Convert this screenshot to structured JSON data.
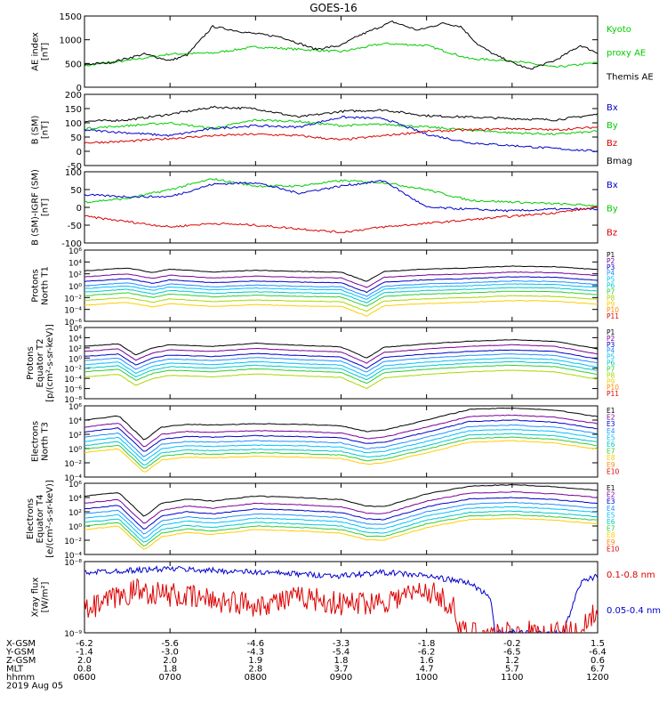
{
  "title": "GOES-16",
  "colors": {
    "black": "#000000",
    "green": "#00cc00",
    "blue": "#0000cc",
    "red": "#dd0000"
  },
  "chart_data": [
    {
      "type": "line",
      "ylabel_lines": [
        "AE index",
        "[nT]"
      ],
      "ylim": [
        0,
        1500
      ],
      "yticks": [
        "0",
        "500",
        "1000",
        "1500"
      ],
      "log": false,
      "legend": [
        {
          "label": "Kyoto",
          "color": "green"
        },
        {
          "label": "proxy AE",
          "color": "green"
        },
        {
          "label": "Themis AE",
          "color": "black"
        }
      ],
      "series": [
        {
          "name": "Kyoto proxy AE",
          "color": "green",
          "x": [
            0,
            0.5,
            1,
            1.5,
            2,
            2.5,
            3,
            3.5,
            4,
            4.5,
            5,
            5.5,
            6
          ],
          "y": [
            450,
            560,
            700,
            720,
            850,
            800,
            750,
            920,
            880,
            600,
            560,
            420,
            520
          ]
        },
        {
          "name": "Themis AE",
          "color": "black",
          "x": [
            0,
            0.3,
            0.7,
            1,
            1.2,
            1.5,
            1.9,
            2.3,
            2.7,
            3,
            3.2,
            3.6,
            3.9,
            4.2,
            4.4,
            4.6,
            4.8,
            5,
            5.2,
            5.5,
            5.8,
            6
          ],
          "y": [
            480,
            520,
            700,
            560,
            680,
            1280,
            1150,
            1060,
            800,
            880,
            1080,
            1380,
            1200,
            1350,
            1280,
            900,
            680,
            520,
            380,
            560,
            880,
            720
          ]
        }
      ]
    },
    {
      "type": "line",
      "ylabel_lines": [
        "B (SM)",
        "[nT]"
      ],
      "ylim": [
        -50,
        200
      ],
      "yticks": [
        "-50",
        "0",
        "50",
        "100",
        "150",
        "200"
      ],
      "log": false,
      "legend": [
        {
          "label": "Bx",
          "color": "blue"
        },
        {
          "label": "By",
          "color": "green"
        },
        {
          "label": "Bz",
          "color": "red"
        },
        {
          "label": "Bmag",
          "color": "black"
        }
      ],
      "series": [
        {
          "name": "Bmag",
          "color": "black",
          "x": [
            0,
            0.5,
            1,
            1.5,
            2,
            2.5,
            3,
            3.5,
            4,
            4.5,
            5,
            5.5,
            6
          ],
          "y": [
            105,
            110,
            130,
            155,
            150,
            120,
            140,
            145,
            125,
            120,
            115,
            110,
            130
          ]
        },
        {
          "name": "By",
          "color": "green",
          "x": [
            0,
            0.5,
            1,
            1.5,
            2,
            2.5,
            3,
            3.5,
            4,
            4.5,
            5,
            5.5,
            6
          ],
          "y": [
            80,
            90,
            100,
            80,
            110,
            105,
            90,
            95,
            85,
            75,
            65,
            60,
            70
          ]
        },
        {
          "name": "Bx",
          "color": "blue",
          "x": [
            0,
            0.5,
            1,
            1.5,
            2,
            2.5,
            3,
            3.5,
            4,
            4.5,
            5,
            5.5,
            6
          ],
          "y": [
            75,
            65,
            55,
            80,
            90,
            85,
            120,
            115,
            60,
            30,
            20,
            10,
            0
          ]
        },
        {
          "name": "Bz",
          "color": "red",
          "x": [
            0,
            0.5,
            1,
            1.5,
            2,
            2.5,
            3,
            3.5,
            4,
            4.5,
            5,
            5.5,
            6
          ],
          "y": [
            30,
            35,
            45,
            55,
            60,
            55,
            40,
            55,
            70,
            75,
            80,
            75,
            85
          ]
        }
      ]
    },
    {
      "type": "line",
      "ylabel_lines": [
        "B (SM)-IGRF (SM)",
        "[nT]"
      ],
      "ylim": [
        -100,
        100
      ],
      "yticks": [
        "-100",
        "-50",
        "0",
        "50",
        "100"
      ],
      "log": false,
      "legend": [
        {
          "label": "Bx",
          "color": "blue"
        },
        {
          "label": "By",
          "color": "green"
        },
        {
          "label": "Bz",
          "color": "red"
        }
      ],
      "series": [
        {
          "name": "By",
          "color": "green",
          "x": [
            0,
            0.5,
            1,
            1.5,
            2,
            2.5,
            3,
            3.5,
            4,
            4.5,
            5,
            5.5,
            6
          ],
          "y": [
            15,
            25,
            50,
            80,
            60,
            60,
            75,
            70,
            50,
            20,
            15,
            10,
            5
          ]
        },
        {
          "name": "Bx",
          "color": "blue",
          "x": [
            0,
            0.5,
            1,
            1.5,
            2,
            2.5,
            3,
            3.5,
            4,
            4.5,
            5,
            5.5,
            6
          ],
          "y": [
            35,
            30,
            30,
            65,
            70,
            40,
            60,
            75,
            0,
            -5,
            -10,
            -5,
            -5
          ]
        },
        {
          "name": "Bz",
          "color": "red",
          "x": [
            0,
            0.5,
            1,
            1.5,
            2,
            2.5,
            3,
            3.5,
            4,
            4.5,
            5,
            5.5,
            6
          ],
          "y": [
            -25,
            -40,
            -55,
            -45,
            -50,
            -60,
            -70,
            -55,
            -45,
            -35,
            -25,
            -15,
            0
          ]
        }
      ]
    },
    {
      "type": "line",
      "ylabel_lines": [
        "Protons",
        "North T1"
      ],
      "log": true,
      "ylim_exp": [
        -6,
        6
      ],
      "yticks": [
        "10⁻⁶",
        "10⁻⁴",
        "10⁻²",
        "10⁰",
        "10²",
        "10⁴",
        "10⁶"
      ],
      "legend": [
        {
          "label": "P1",
          "color": "#000000"
        },
        {
          "label": "P2",
          "color": "#7a0099"
        },
        {
          "label": "P3",
          "color": "#0000cc"
        },
        {
          "label": "P4",
          "color": "#1e90ff"
        },
        {
          "label": "P5",
          "color": "#00bfff"
        },
        {
          "label": "P6",
          "color": "#00c8c8"
        },
        {
          "label": "P7",
          "color": "#33cc33"
        },
        {
          "label": "P8",
          "color": "#a8d800"
        },
        {
          "label": "P9",
          "color": "#ffcc00"
        },
        {
          "label": "P10",
          "color": "#ff8800"
        },
        {
          "label": "P11",
          "color": "#dd0000"
        }
      ],
      "profile": {
        "x": [
          0,
          0.5,
          0.8,
          1,
          1.5,
          2,
          2.5,
          3,
          3.3,
          3.5,
          4,
          4.5,
          5,
          5.5,
          6
        ],
        "y": [
          2.5,
          3,
          2.2,
          2.8,
          2.3,
          2.6,
          2.4,
          2.3,
          0.7,
          2.4,
          2.8,
          3,
          3.3,
          3.2,
          2.7
        ]
      },
      "channel_offsets": [
        0,
        -1,
        -1.8,
        -2.5,
        -3,
        -3.6,
        -4.2,
        -5,
        -5.8
      ]
    },
    {
      "type": "line",
      "ylabel_lines": [
        "Protons",
        "Equator T2",
        "[p/(cm²-s-sr-keV)]"
      ],
      "log": true,
      "ylim_exp": [
        -8,
        6
      ],
      "yticks": [
        "10⁻⁸",
        "10⁻⁶",
        "10⁻⁴",
        "10⁻²",
        "10⁰",
        "10²",
        "10⁴",
        "10⁶"
      ],
      "legend": [
        {
          "label": "P1",
          "color": "#000000"
        },
        {
          "label": "P2",
          "color": "#7a0099"
        },
        {
          "label": "P3",
          "color": "#0000cc"
        },
        {
          "label": "P4",
          "color": "#1e90ff"
        },
        {
          "label": "P5",
          "color": "#00bfff"
        },
        {
          "label": "P6",
          "color": "#00c8c8"
        },
        {
          "label": "P7",
          "color": "#33cc33"
        },
        {
          "label": "P8",
          "color": "#a8d800"
        },
        {
          "label": "P9",
          "color": "#ffcc00"
        },
        {
          "label": "P10",
          "color": "#ff8800"
        },
        {
          "label": "P11",
          "color": "#dd0000"
        }
      ],
      "profile": {
        "x": [
          0,
          0.4,
          0.6,
          0.8,
          1,
          1.5,
          2,
          2.5,
          3,
          3.3,
          3.5,
          4,
          4.5,
          5,
          5.5,
          6
        ],
        "y": [
          2.3,
          2.8,
          0.6,
          2.0,
          2.6,
          2.3,
          2.9,
          2.5,
          2.2,
          0,
          2.1,
          2.8,
          3.3,
          3.6,
          3.3,
          1.8
        ]
      },
      "channel_offsets": [
        0,
        -1,
        -2,
        -2.8,
        -3.6,
        -4.3,
        -5,
        -6
      ]
    },
    {
      "type": "line",
      "ylabel_lines": [
        "Electrons",
        "North T3"
      ],
      "log": true,
      "ylim_exp": [
        -4,
        6
      ],
      "yticks": [
        "10⁻⁴",
        "10⁻²",
        "10⁰",
        "10²",
        "10⁴",
        "10⁶"
      ],
      "legend": [
        {
          "label": "E1",
          "color": "#000000"
        },
        {
          "label": "E2",
          "color": "#7a0099"
        },
        {
          "label": "E3",
          "color": "#0000cc"
        },
        {
          "label": "E4",
          "color": "#1e90ff"
        },
        {
          "label": "E5",
          "color": "#00bfff"
        },
        {
          "label": "E6",
          "color": "#00c8c8"
        },
        {
          "label": "E7",
          "color": "#33cc33"
        },
        {
          "label": "E8",
          "color": "#ffcc00"
        },
        {
          "label": "E9",
          "color": "#ff8800"
        },
        {
          "label": "E10",
          "color": "#dd0000"
        }
      ],
      "profile": {
        "x": [
          0,
          0.4,
          0.7,
          0.9,
          1.2,
          1.5,
          2,
          2.5,
          3,
          3.3,
          3.5,
          4,
          4.5,
          5,
          5.5,
          6
        ],
        "y": [
          4,
          4.6,
          1.2,
          3,
          3.4,
          3.3,
          3.5,
          3.4,
          3.2,
          2.4,
          2.6,
          4,
          5.5,
          5.7,
          5.4,
          4.5
        ]
      },
      "channel_offsets": [
        0,
        -1,
        -1.7,
        -2.4,
        -3,
        -3.6,
        -4.1,
        -4.6
      ]
    },
    {
      "type": "line",
      "ylabel_lines": [
        "Electrons",
        "Equator T4",
        "[e/(cm²-s-sr-keV)]"
      ],
      "log": true,
      "ylim_exp": [
        -4,
        6
      ],
      "yticks": [
        "10⁻⁴",
        "10⁻²",
        "10⁰",
        "10²",
        "10⁴",
        "10⁶"
      ],
      "legend": [
        {
          "label": "E1",
          "color": "#000000"
        },
        {
          "label": "E2",
          "color": "#7a0099"
        },
        {
          "label": "E3",
          "color": "#0000cc"
        },
        {
          "label": "E4",
          "color": "#1e90ff"
        },
        {
          "label": "E5",
          "color": "#00bfff"
        },
        {
          "label": "E6",
          "color": "#00c8c8"
        },
        {
          "label": "E7",
          "color": "#33cc33"
        },
        {
          "label": "E8",
          "color": "#ffcc00"
        },
        {
          "label": "E9",
          "color": "#ff8800"
        },
        {
          "label": "E10",
          "color": "#dd0000"
        }
      ],
      "profile": {
        "x": [
          0,
          0.4,
          0.7,
          0.9,
          1.2,
          1.5,
          2,
          2.5,
          3,
          3.3,
          3.5,
          4,
          4.5,
          5,
          5.5,
          6
        ],
        "y": [
          4.2,
          4.7,
          1.3,
          3.2,
          3.8,
          3.5,
          4.2,
          4,
          3.7,
          2.8,
          2.7,
          4.5,
          5.6,
          5.8,
          5.5,
          5
        ]
      },
      "channel_offsets": [
        0,
        -1,
        -1.8,
        -2.5,
        -3.1,
        -3.7,
        -4.2,
        -4.7
      ]
    },
    {
      "type": "line",
      "ylabel_lines": [
        "Xray flux",
        "[W/m²]"
      ],
      "log": true,
      "ylim_exp": [
        -9,
        -8
      ],
      "yticks": [
        "10⁻⁹",
        "10⁻⁸"
      ],
      "legend": [
        {
          "label": "0.1-0.8 nm",
          "color": "red"
        },
        {
          "label": "0.05-0.4 nm",
          "color": "blue"
        }
      ],
      "series": [
        {
          "name": "0.05-0.4 nm",
          "color": "blue",
          "x": [
            0,
            1,
            2,
            3,
            3.5,
            4,
            4.5,
            4.75,
            4.8,
            5.6,
            5.8,
            6
          ],
          "y": [
            -8.15,
            -8.1,
            -8.15,
            -8.2,
            -8.15,
            -8.2,
            -8.3,
            -8.5,
            -9,
            -9,
            -8.3,
            -8.2
          ]
        },
        {
          "name": "0.1-0.8 nm",
          "color": "red",
          "x": [
            0,
            0.6,
            1.2,
            2,
            2.6,
            3,
            3.5,
            4,
            4.3,
            4.4,
            5.8,
            6
          ],
          "y": [
            -8.7,
            -8.4,
            -8.5,
            -8.6,
            -8.5,
            -8.6,
            -8.55,
            -8.4,
            -8.6,
            -9,
            -9,
            -8.6
          ]
        }
      ]
    }
  ],
  "x_axis": {
    "rows": [
      {
        "label": "X-GSM",
        "values": [
          "-6.2",
          "-5.6",
          "-4.6",
          "-3.3",
          "-1.8",
          "-0.2",
          "1.5"
        ]
      },
      {
        "label": "Y-GSM",
        "values": [
          "-1.4",
          "-3.0",
          "-4.3",
          "-5.4",
          "-6.2",
          "-6.5",
          "-6.4"
        ]
      },
      {
        "label": "Z-GSM",
        "values": [
          "2.0",
          "2.0",
          "1.9",
          "1.8",
          "1.6",
          "1.2",
          "0.6"
        ]
      },
      {
        "label": "MLT",
        "values": [
          "0.8",
          "1.8",
          "2.8",
          "3.7",
          "4.7",
          "5.7",
          "6.7"
        ]
      },
      {
        "label": "hhmm",
        "values": [
          "0600",
          "0700",
          "0800",
          "0900",
          "1000",
          "1100",
          "1200"
        ]
      }
    ],
    "date": "2019 Aug 05"
  }
}
